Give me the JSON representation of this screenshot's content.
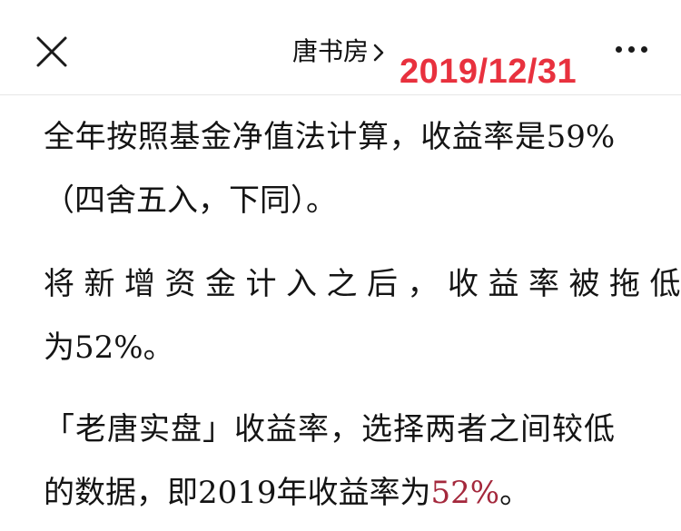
{
  "header": {
    "title": "唐书房",
    "date_stamp": "2019/12/31"
  },
  "content": {
    "p1": {
      "line1_text": "全年按照基金净值法计算，收益率是",
      "line1_num": "59%",
      "line2": "（四舍五入，下同）。"
    },
    "p2": {
      "line1": "将新增资金计入之后，收益率被拖低",
      "line2_prefix": "为",
      "line2_num": "52%",
      "line2_suffix": "。"
    },
    "p3": {
      "line1": "「老唐实盘」收益率，选择两者之间较低",
      "line2_prefix": "的数据，即",
      "line2_year": "2019",
      "line2_mid": "年收益率为",
      "line2_num": "52%",
      "line2_suffix": "。"
    }
  },
  "colors": {
    "date_stamp": "#e8313e",
    "highlight_number": "#a4283c"
  }
}
